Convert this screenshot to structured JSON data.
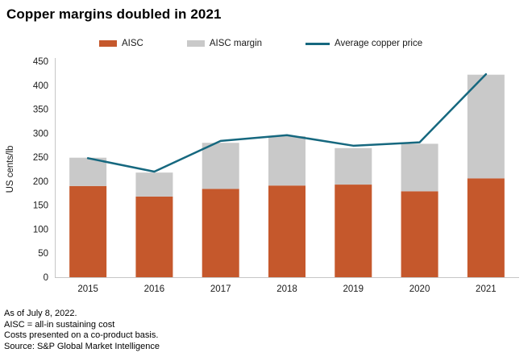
{
  "title": "Copper margins doubled in 2021",
  "legend": [
    {
      "label": "AISC",
      "type": "bar",
      "color": "#C5582C"
    },
    {
      "label": "AISC margin",
      "type": "bar",
      "color": "#C9C9C9"
    },
    {
      "label": "Average copper price",
      "type": "line",
      "color": "#16687F"
    }
  ],
  "colors": {
    "aisc": "#C5582C",
    "aisc_margin": "#C9C9C9",
    "copper_price_line": "#16687F",
    "axis_line": "#C6C6C6",
    "text": "#1A1A1A"
  },
  "footnotes": [
    "As of July 8, 2022.",
    "AISC = all-in sustaining cost",
    "Costs presented on a co-product basis.",
    "Source: S&P Global Market Intelligence"
  ],
  "chart_data": {
    "type": "bar",
    "subtype": "stacked-bar-with-line",
    "title": "Copper margins doubled in 2021",
    "categories": [
      "2015",
      "2016",
      "2017",
      "2018",
      "2019",
      "2020",
      "2021"
    ],
    "series": [
      {
        "name": "AISC",
        "type": "bar",
        "stacked": true,
        "color": "#C5582C",
        "values": [
          190,
          168,
          184,
          191,
          193,
          179,
          206
        ]
      },
      {
        "name": "AISC margin",
        "type": "bar",
        "stacked": true,
        "color": "#C9C9C9",
        "values": [
          59,
          50,
          96,
          103,
          76,
          99,
          216
        ]
      },
      {
        "name": "Average copper price",
        "type": "line",
        "color": "#16687F",
        "values": [
          248,
          220,
          284,
          296,
          274,
          281,
          423
        ]
      }
    ],
    "stack_totals": [
      249,
      218,
      280,
      294,
      269,
      278,
      422
    ],
    "xlabel": "",
    "ylabel": "US cents/lb",
    "ylim": [
      0,
      450
    ],
    "yticks": [
      0,
      50,
      100,
      150,
      200,
      250,
      300,
      350,
      400,
      450
    ],
    "grid": false,
    "legend_position": "top"
  }
}
